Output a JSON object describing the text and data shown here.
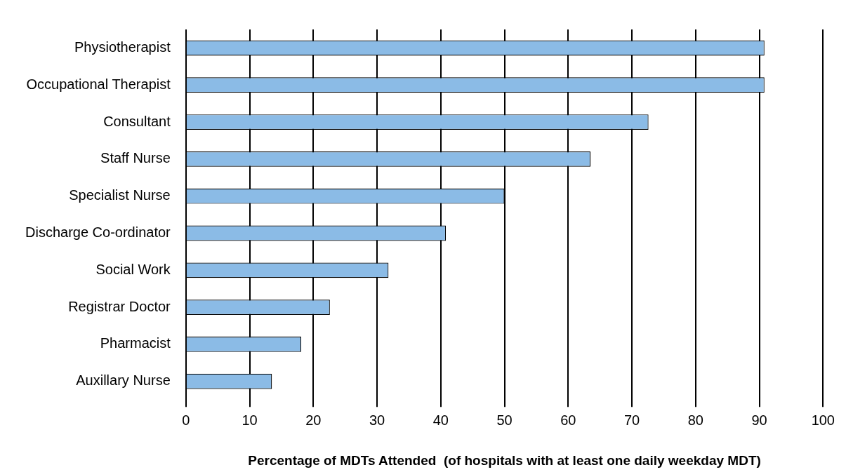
{
  "chart_data": {
    "type": "bar",
    "orientation": "horizontal",
    "xlabel": "Percentage of MDTs Attended  (of hospitals with at least one daily weekday MDT)",
    "categories": [
      "Physiotherapist",
      "Occupational Therapist",
      "Consultant",
      "Staff Nurse",
      "Specialist Nurse",
      "Discharge Co-ordinator",
      "Social Work",
      "Registrar Doctor",
      "Pharmacist",
      "Auxillary Nurse"
    ],
    "values": [
      90.8,
      90.8,
      72.6,
      63.5,
      50,
      40.8,
      31.8,
      22.6,
      18.1,
      13.5
    ],
    "color": "#8bbbe6",
    "xlim": [
      0,
      100
    ],
    "xticks": [
      0,
      10,
      20,
      30,
      40,
      50,
      60,
      70,
      80,
      90,
      100
    ],
    "grid": "x",
    "legend": false
  }
}
